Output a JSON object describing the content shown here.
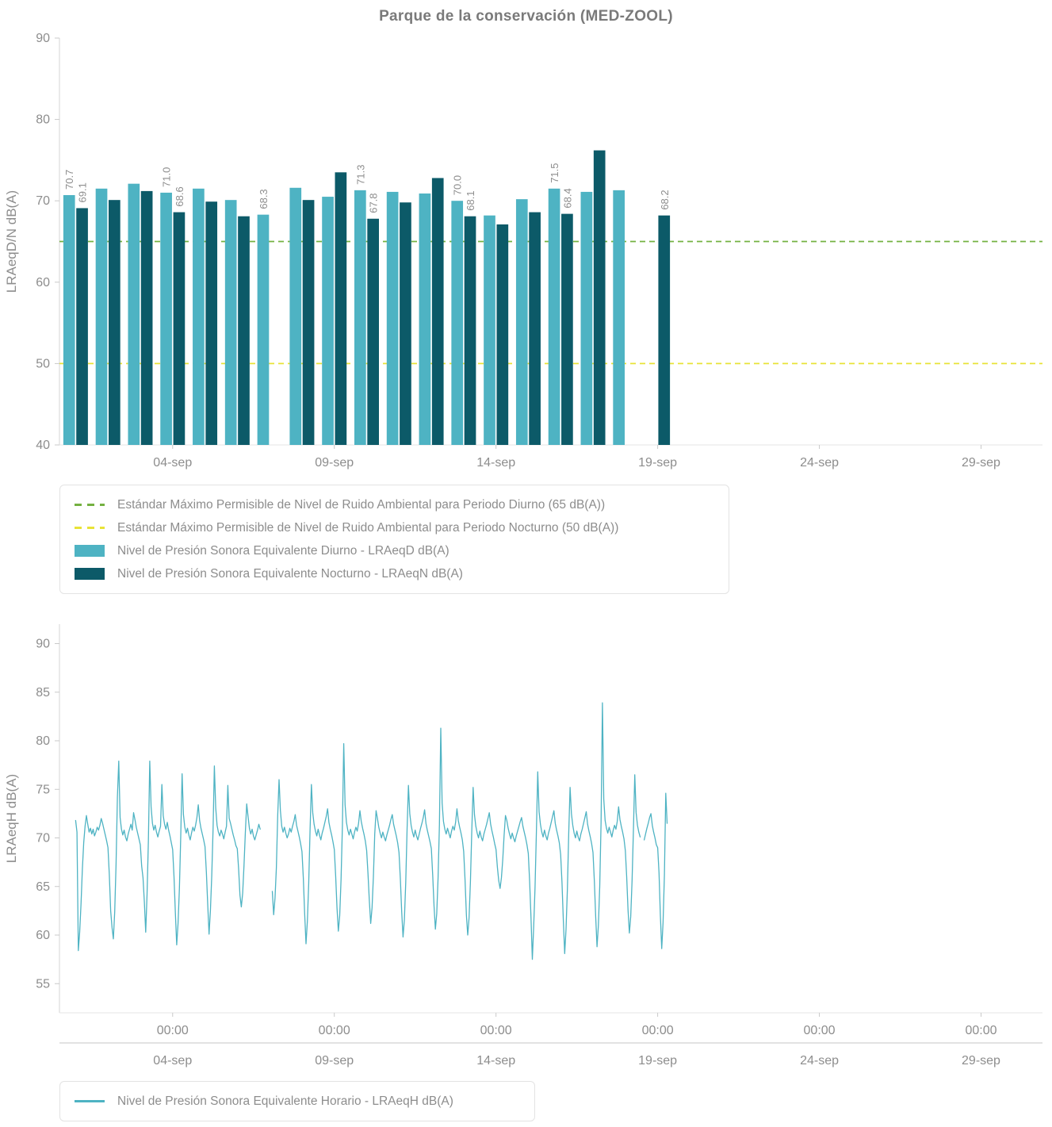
{
  "title": "Parque de la conservación  (MED-ZOOL)",
  "chart_data": [
    {
      "type": "bar",
      "ylabel": "LRAeqD/N dB(A)",
      "ylim": [
        40,
        90
      ],
      "yticks": [
        40,
        50,
        60,
        70,
        80,
        90
      ],
      "xlim_days": [
        0.5,
        30.9
      ],
      "x_ticks": [
        {
          "day": 4,
          "label": "04-sep"
        },
        {
          "day": 9,
          "label": "09-sep"
        },
        {
          "day": 14,
          "label": "14-sep"
        },
        {
          "day": 19,
          "label": "19-sep"
        },
        {
          "day": 24,
          "label": "24-sep"
        },
        {
          "day": 29,
          "label": "29-sep"
        }
      ],
      "bar_width_days": 0.36,
      "bar_offset_days": 0.2,
      "reference_lines": [
        {
          "value": 65,
          "style": "dashed",
          "color": "#74b141",
          "label": "Estándar Máximo Permisible de Nivel de Ruido Ambiental para Periodo Diurno (65 dB(A))"
        },
        {
          "value": 50,
          "style": "dashed",
          "color": "#e8e337",
          "label": "Estándar Máximo Permisible de Nivel de Ruido Ambiental para Periodo Nocturno (50 dB(A))"
        }
      ],
      "series": [
        {
          "key": "diurno",
          "name": "Nivel de Presión Sonora Equivalente Diurno - LRAeqD dB(A)",
          "color": "#4eb3c3"
        },
        {
          "key": "nocturno",
          "name": "Nivel de Presión Sonora Equivalente Nocturno - LRAeqN dB(A)",
          "color": "#0c5a68"
        }
      ],
      "days": [
        {
          "day": 1,
          "date": "01-sep",
          "diurno": 70.7,
          "nocturno": 69.1,
          "labeled": true
        },
        {
          "day": 2,
          "date": "02-sep",
          "diurno": 71.5,
          "nocturno": 70.1,
          "labeled": false
        },
        {
          "day": 3,
          "date": "03-sep",
          "diurno": 72.1,
          "nocturno": 71.2,
          "labeled": false
        },
        {
          "day": 4,
          "date": "04-sep",
          "diurno": 71.0,
          "nocturno": 68.6,
          "labeled": true
        },
        {
          "day": 5,
          "date": "05-sep",
          "diurno": 71.5,
          "nocturno": 69.9,
          "labeled": false
        },
        {
          "day": 6,
          "date": "06-sep",
          "diurno": 70.1,
          "nocturno": 68.1,
          "labeled": false
        },
        {
          "day": 7,
          "date": "07-sep",
          "diurno": 68.3,
          "nocturno": null,
          "labeled": true
        },
        {
          "day": 8,
          "date": "08-sep",
          "diurno": 71.6,
          "nocturno": 70.1,
          "labeled": false
        },
        {
          "day": 9,
          "date": "09-sep",
          "diurno": 70.5,
          "nocturno": 73.5,
          "labeled": false
        },
        {
          "day": 10,
          "date": "10-sep",
          "diurno": 71.3,
          "nocturno": 67.8,
          "labeled": true
        },
        {
          "day": 11,
          "date": "11-sep",
          "diurno": 71.1,
          "nocturno": 69.8,
          "labeled": false
        },
        {
          "day": 12,
          "date": "12-sep",
          "diurno": 70.9,
          "nocturno": 72.8,
          "labeled": false
        },
        {
          "day": 13,
          "date": "13-sep",
          "diurno": 70.0,
          "nocturno": 68.1,
          "labeled": true
        },
        {
          "day": 14,
          "date": "14-sep",
          "diurno": 68.2,
          "nocturno": 67.1,
          "labeled": false
        },
        {
          "day": 15,
          "date": "15-sep",
          "diurno": 70.2,
          "nocturno": 68.6,
          "labeled": false
        },
        {
          "day": 16,
          "date": "16-sep",
          "diurno": 71.5,
          "nocturno": 68.4,
          "labeled": true
        },
        {
          "day": 17,
          "date": "17-sep",
          "diurno": 71.1,
          "nocturno": 76.2,
          "labeled": false
        },
        {
          "day": 18,
          "date": "18-sep",
          "diurno": 71.3,
          "nocturno": null,
          "labeled": false
        },
        {
          "day": 19,
          "date": "19-sep",
          "diurno": null,
          "nocturno": 68.2,
          "labeled": true
        }
      ]
    },
    {
      "type": "line",
      "name": "Nivel de Presión Sonora Equivalente Horario - LRAeqH dB(A)",
      "color": "#4eb3c3",
      "ylabel": "LRAeqH dB(A)",
      "ylim": [
        52,
        92
      ],
      "yticks": [
        55,
        60,
        65,
        70,
        75,
        80,
        85,
        90
      ],
      "x_time_ticks": [
        {
          "day": 4,
          "label": "00:00"
        },
        {
          "day": 9,
          "label": "00:00"
        },
        {
          "day": 14,
          "label": "00:00"
        },
        {
          "day": 19,
          "label": "00:00"
        },
        {
          "day": 24,
          "label": "00:00"
        },
        {
          "day": 29,
          "label": "00:00"
        }
      ],
      "x_date_ticks": [
        {
          "day": 4,
          "label": "04-sep"
        },
        {
          "day": 9,
          "label": "09-sep"
        },
        {
          "day": 14,
          "label": "14-sep"
        },
        {
          "day": 19,
          "label": "19-sep"
        },
        {
          "day": 24,
          "label": "24-sep"
        },
        {
          "day": 29,
          "label": "29-sep"
        }
      ],
      "start_day": 1,
      "step_hours": 1,
      "values": [
        71.8,
        70.6,
        58.4,
        60.3,
        63.2,
        66.8,
        69.5,
        71.2,
        72.3,
        71.4,
        70.6,
        71.0,
        70.4,
        70.9,
        70.2,
        70.6,
        71.1,
        70.8,
        71.3,
        72.0,
        71.5,
        70.9,
        70.3,
        69.7,
        69.0,
        66.2,
        62.5,
        60.8,
        59.6,
        62.4,
        67.3,
        74.2,
        77.9,
        72.1,
        70.9,
        70.3,
        70.8,
        70.1,
        69.7,
        70.4,
        70.9,
        71.4,
        70.8,
        72.6,
        71.9,
        71.1,
        70.5,
        69.9,
        69.3,
        67.1,
        65.9,
        63.4,
        60.3,
        64.2,
        69.8,
        77.9,
        73.2,
        71.5,
        70.8,
        71.3,
        70.6,
        70.1,
        70.7,
        71.2,
        75.5,
        72.3,
        71.4,
        70.9,
        71.6,
        70.8,
        70.2,
        69.5,
        68.8,
        66.0,
        62.3,
        59.0,
        61.2,
        64.8,
        70.2,
        76.6,
        72.4,
        71.1,
        70.5,
        71.0,
        70.3,
        69.8,
        70.5,
        71.1,
        70.7,
        71.3,
        72.1,
        73.4,
        71.8,
        71.0,
        70.4,
        69.8,
        69.1,
        66.5,
        63.2,
        60.1,
        62.5,
        66.1,
        71.0,
        77.4,
        73.1,
        71.3,
        70.6,
        70.2,
        70.8,
        70.4,
        69.9,
        70.6,
        71.2,
        75.4,
        72.0,
        71.5,
        70.9,
        70.3,
        69.8,
        69.2,
        68.9,
        66.8,
        64.1,
        62.9,
        64.3,
        67.2,
        70.6,
        73.5,
        72.2,
        71.0,
        70.4,
        70.9,
        70.2,
        69.8,
        70.3,
        70.8,
        71.4,
        70.9,
        null,
        null,
        null,
        null,
        null,
        null,
        null,
        null,
        64.5,
        62.1,
        63.8,
        66.9,
        72.3,
        76.0,
        72.8,
        71.2,
        70.6,
        71.1,
        70.5,
        70.0,
        70.4,
        71.0,
        70.6,
        71.2,
        71.7,
        72.4,
        71.3,
        70.7,
        70.1,
        69.4,
        68.6,
        65.9,
        62.2,
        59.1,
        61.4,
        65.3,
        70.8,
        75.5,
        72.6,
        71.4,
        70.7,
        70.2,
        70.9,
        70.3,
        69.8,
        70.5,
        71.0,
        71.6,
        72.2,
        73.0,
        71.6,
        70.9,
        70.3,
        69.6,
        68.8,
        66.1,
        62.8,
        60.4,
        62.0,
        65.7,
        71.2,
        79.7,
        73.4,
        71.6,
        70.8,
        70.3,
        70.9,
        70.4,
        69.9,
        70.6,
        71.1,
        70.7,
        71.5,
        72.8,
        71.7,
        71.0,
        70.4,
        69.7,
        68.7,
        66.3,
        63.5,
        61.2,
        62.8,
        66.0,
        70.4,
        72.8,
        72.0,
        71.1,
        70.5,
        70.0,
        70.6,
        70.1,
        69.7,
        70.3,
        70.8,
        71.3,
        71.9,
        72.4,
        71.4,
        70.8,
        70.2,
        69.5,
        68.5,
        65.8,
        62.4,
        59.8,
        61.6,
        65.4,
        70.9,
        75.4,
        72.5,
        71.3,
        70.6,
        70.1,
        70.8,
        70.2,
        69.8,
        70.4,
        71.0,
        71.5,
        72.1,
        72.9,
        71.5,
        70.8,
        70.2,
        69.6,
        68.9,
        66.2,
        63.0,
        60.6,
        62.2,
        65.9,
        71.4,
        81.3,
        73.6,
        71.7,
        70.9,
        70.4,
        71.0,
        70.5,
        70.0,
        70.7,
        71.2,
        70.8,
        71.6,
        73.0,
        71.8,
        71.1,
        70.5,
        69.8,
        68.6,
        65.7,
        62.1,
        60.0,
        61.8,
        65.5,
        70.7,
        75.2,
        72.4,
        71.2,
        70.5,
        70.0,
        70.7,
        70.1,
        69.7,
        70.4,
        70.9,
        71.4,
        72.0,
        72.6,
        71.4,
        70.7,
        70.1,
        69.4,
        68.8,
        67.0,
        65.6,
        64.8,
        65.9,
        67.8,
        70.3,
        72.3,
        71.8,
        71.0,
        70.4,
        69.9,
        70.5,
        70.0,
        69.6,
        70.2,
        70.7,
        71.2,
        71.7,
        72.1,
        71.2,
        70.6,
        70.0,
        69.3,
        68.4,
        65.5,
        61.8,
        57.5,
        60.9,
        64.9,
        70.6,
        76.8,
        72.7,
        71.4,
        70.6,
        70.1,
        70.8,
        70.2,
        69.8,
        70.5,
        71.0,
        71.6,
        72.2,
        72.8,
        71.5,
        70.8,
        70.2,
        69.5,
        68.3,
        65.4,
        61.5,
        58.1,
        60.6,
        64.7,
        70.5,
        75.2,
        72.5,
        71.3,
        70.5,
        70.0,
        70.7,
        70.1,
        69.7,
        70.4,
        70.9,
        71.5,
        72.1,
        72.7,
        71.4,
        70.7,
        70.1,
        69.4,
        68.5,
        65.6,
        61.9,
        58.8,
        61.0,
        65.0,
        71.6,
        83.9,
        74.0,
        71.8,
        71.0,
        70.5,
        71.1,
        70.6,
        70.1,
        70.8,
        71.3,
        70.9,
        71.7,
        73.2,
        71.9,
        71.2,
        70.6,
        69.9,
        68.7,
        66.0,
        62.6,
        60.2,
        61.9,
        65.6,
        70.8,
        76.5,
        72.6,
        71.3,
        70.6,
        70.1,
        null,
        null,
        69.8,
        70.4,
        71.0,
        71.5,
        72.1,
        72.5,
        71.3,
        70.6,
        70.0,
        69.3,
        69.0,
        66.4,
        62.0,
        58.6,
        61.3,
        66.2,
        74.6,
        71.5
      ]
    }
  ]
}
